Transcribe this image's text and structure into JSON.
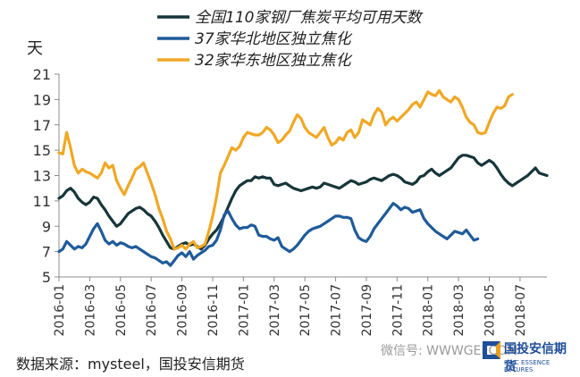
{
  "chart_data": {
    "type": "line",
    "unit_label": "天",
    "ylim": [
      5,
      21
    ],
    "yticks": [
      5,
      7,
      9,
      11,
      13,
      15,
      17,
      19,
      21
    ],
    "xticks": [
      "2016-01",
      "2016-03",
      "2016-05",
      "2016-07",
      "2016-09",
      "2016-11",
      "2017-01",
      "2017-03",
      "2017-05",
      "2017-07",
      "2017-09",
      "2017-11",
      "2018-01",
      "2018-03",
      "2018-05",
      "2018-07"
    ],
    "x_start": "2016-01",
    "points_per_month": 4,
    "grid": false,
    "legend_position": "top",
    "series": [
      {
        "name": "全国110家钢厂焦炭平均可用天数",
        "color": "#17363a",
        "values": [
          11.2,
          11.4,
          11.8,
          12.0,
          11.7,
          11.2,
          10.9,
          10.7,
          10.9,
          11.3,
          11.2,
          10.7,
          10.3,
          9.8,
          9.4,
          9.0,
          9.2,
          9.6,
          10.0,
          10.2,
          10.4,
          10.5,
          10.3,
          10.0,
          9.8,
          9.4,
          8.9,
          8.3,
          7.8,
          7.3,
          7.2,
          7.4,
          7.6,
          7.7,
          7.5,
          7.6,
          7.4,
          7.2,
          7.5,
          8.0,
          8.4,
          8.7,
          9.2,
          9.8,
          10.5,
          11.2,
          11.8,
          12.2,
          12.4,
          12.6,
          12.6,
          12.9,
          12.8,
          12.9,
          12.8,
          12.8,
          12.3,
          12.2,
          12.3,
          12.4,
          12.2,
          12.0,
          11.9,
          11.8,
          11.9,
          12.0,
          12.1,
          12.0,
          12.1,
          12.4,
          12.3,
          12.2,
          12.1,
          12.0,
          12.2,
          12.4,
          12.6,
          12.5,
          12.3,
          12.4,
          12.5,
          12.7,
          12.8,
          12.7,
          12.6,
          12.8,
          13.0,
          13.1,
          13.0,
          12.8,
          12.5,
          12.4,
          12.3,
          12.5,
          12.9,
          13.0,
          13.3,
          13.5,
          13.2,
          13.0,
          13.2,
          13.4,
          13.6,
          14.0,
          14.4,
          14.6,
          14.6,
          14.5,
          14.4,
          14.0,
          13.8,
          14.0,
          14.2,
          14.0,
          13.6,
          13.1,
          12.7,
          12.4,
          12.2,
          12.4,
          12.6,
          12.8,
          13.0,
          13.3,
          13.6,
          13.2,
          13.1,
          13.0
        ]
      },
      {
        "name": "37家华北地区独立焦化",
        "color": "#1f5b9a",
        "values": [
          7.0,
          7.2,
          7.8,
          7.5,
          7.2,
          7.4,
          7.3,
          7.6,
          8.2,
          8.8,
          9.2,
          8.6,
          7.9,
          7.6,
          7.8,
          7.5,
          7.7,
          7.6,
          7.4,
          7.3,
          7.4,
          7.2,
          7.0,
          6.8,
          6.6,
          6.5,
          6.3,
          6.1,
          6.2,
          5.9,
          6.3,
          6.7,
          6.9,
          6.6,
          7.0,
          6.4,
          6.7,
          6.9,
          7.1,
          7.4,
          7.5,
          7.9,
          8.7,
          9.9,
          10.2,
          9.6,
          9.1,
          8.8,
          8.9,
          8.9,
          9.1,
          9.0,
          8.3,
          8.2,
          8.2,
          8.0,
          7.9,
          8.1,
          7.4,
          7.2,
          7.0,
          7.2,
          7.5,
          7.9,
          8.3,
          8.6,
          8.8,
          8.9,
          9.0,
          9.2,
          9.4,
          9.6,
          9.8,
          9.8,
          9.7,
          9.7,
          9.6,
          8.7,
          8.1,
          7.9,
          7.8,
          8.2,
          8.8,
          9.2,
          9.6,
          10.0,
          10.4,
          10.8,
          10.6,
          10.3,
          10.5,
          10.4,
          10.1,
          10.2,
          10.3,
          9.6,
          9.2,
          8.9,
          8.6,
          8.4,
          8.2,
          8.0,
          8.3,
          8.6,
          8.5,
          8.4,
          8.7,
          8.3,
          7.9,
          8.0
        ]
      },
      {
        "name": "32家华东地区独立焦化",
        "color": "#f0a825",
        "values": [
          14.8,
          14.7,
          16.4,
          15.2,
          13.8,
          13.2,
          13.5,
          13.3,
          13.2,
          13.0,
          12.8,
          13.2,
          14.0,
          13.6,
          13.8,
          12.6,
          12.0,
          11.5,
          12.2,
          12.8,
          13.5,
          13.7,
          14.0,
          13.2,
          12.4,
          11.5,
          10.4,
          9.6,
          8.6,
          8.0,
          7.2,
          7.3,
          7.5,
          7.2,
          7.6,
          7.8,
          7.3,
          7.4,
          7.6,
          8.6,
          9.8,
          11.3,
          13.2,
          13.8,
          14.5,
          15.2,
          15.0,
          15.3,
          16.0,
          16.4,
          16.3,
          16.2,
          16.2,
          16.4,
          16.8,
          16.6,
          16.2,
          15.6,
          15.8,
          16.2,
          16.5,
          17.2,
          17.8,
          17.5,
          16.8,
          16.4,
          16.2,
          16.0,
          16.4,
          16.8,
          16.0,
          15.4,
          15.6,
          16.0,
          15.8,
          16.4,
          16.6,
          16.0,
          16.4,
          17.4,
          17.2,
          17.0,
          17.8,
          18.3,
          18.0,
          17.0,
          17.4,
          17.6,
          17.3,
          17.6,
          17.9,
          18.2,
          18.6,
          18.8,
          18.4,
          19.0,
          19.6,
          19.4,
          19.3,
          19.7,
          19.2,
          19.0,
          18.8,
          19.2,
          19.0,
          18.4,
          17.6,
          17.2,
          17.0,
          16.4,
          16.3,
          16.4,
          17.2,
          17.9,
          18.4,
          18.3,
          18.5,
          19.2,
          19.4
        ]
      }
    ]
  },
  "footer": {
    "source": "数据来源：mysteel，国投安信期货"
  },
  "watermark": {
    "text": "微信号: WWWGEFCOM"
  },
  "logo": {
    "name_cn": "国投安信期货",
    "name_en": "SDIC ESSENCE FUTURES"
  }
}
